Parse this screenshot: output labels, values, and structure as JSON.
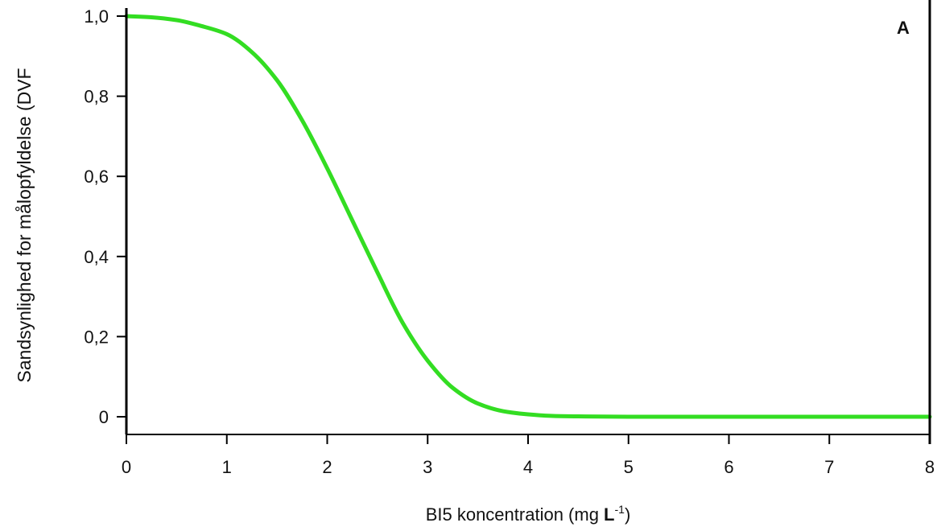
{
  "chart_data": {
    "type": "line",
    "title": "",
    "panel_label": "A",
    "xlabel": "BI5 koncentration (mg L-1)",
    "xlabel_parts": {
      "main": "BI5 koncentration (mg ",
      "unit": "L",
      "sup": "-1",
      "close": ")"
    },
    "ylabel": "Sandsynlighed for målopfyldelse (DVF",
    "xlim": [
      0,
      8
    ],
    "ylim": [
      0,
      1
    ],
    "x_ticks": [
      0,
      1,
      2,
      3,
      4,
      5,
      6,
      7,
      8
    ],
    "x_tick_labels": [
      "0",
      "1",
      "2",
      "3",
      "4",
      "5",
      "6",
      "7",
      "8"
    ],
    "y_ticks": [
      0,
      0.2,
      0.4,
      0.6,
      0.8,
      1.0
    ],
    "y_tick_labels": [
      "0",
      "0,2",
      "0,4",
      "0,6",
      "0,8",
      "1,0"
    ],
    "grid": false,
    "series": [
      {
        "color": "#33dd22",
        "x": [
          0,
          0.25,
          0.5,
          0.75,
          1.0,
          1.25,
          1.5,
          1.75,
          2.0,
          2.25,
          2.5,
          2.75,
          3.0,
          3.25,
          3.5,
          3.75,
          4.0,
          4.25,
          4.5,
          5.0,
          6.0,
          7.0,
          8.0
        ],
        "values": [
          1.0,
          0.997,
          0.99,
          0.975,
          0.955,
          0.91,
          0.84,
          0.74,
          0.62,
          0.49,
          0.36,
          0.235,
          0.14,
          0.072,
          0.033,
          0.014,
          0.006,
          0.002,
          0.001,
          0.0,
          0.0,
          0.0,
          0.0
        ]
      }
    ]
  }
}
